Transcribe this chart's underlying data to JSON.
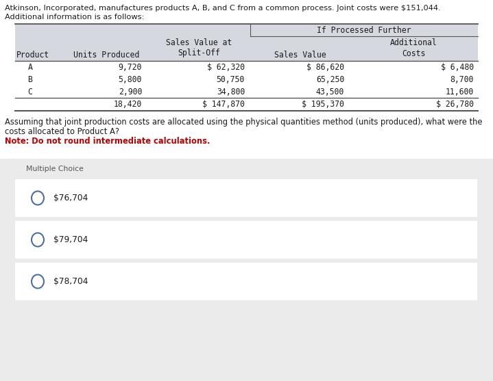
{
  "title_line1": "Atkinson, Incorporated, manufactures products A, B, and C from a common process. Joint costs were $151,044.",
  "title_line2": "Additional information is as follows:",
  "bg_color": "#ffffff",
  "table_header_bg": "#d6d8e0",
  "mc_bg": "#ebebeb",
  "mc_choice_bg": "#f5f5f5",
  "header_if_processed": "If Processed Further",
  "col_headers": [
    "Product",
    "Units Produced",
    "Sales Value at\nSplit-Off",
    "Sales Value",
    "Additional\nCosts"
  ],
  "products": [
    "A",
    "B",
    "C"
  ],
  "units": [
    "9,720",
    "5,800",
    "2,900"
  ],
  "sales_splitoff": [
    "$ 62,320",
    "50,750",
    "34,800"
  ],
  "sales_value": [
    "$ 86,620",
    "65,250",
    "43,500"
  ],
  "add_costs": [
    "$ 6,480",
    "8,700",
    "11,600"
  ],
  "total_units": "18,420",
  "total_splitoff": "$ 147,870",
  "total_sales": "$ 195,370",
  "total_costs": "$ 26,780",
  "question_line1": "Assuming that joint production costs are allocated using the physical quantities method (units produced), what were the",
  "question_line2": "costs allocated to Product A?",
  "note": "Note: Do not round intermediate calculations.",
  "mc_label": "Multiple Choice",
  "choices": [
    "$76,704",
    "$79,704",
    "$78,704"
  ],
  "note_color": "#bb0000",
  "text_color": "#1a1a1a",
  "line_color": "#555555",
  "circle_color": "#4a6fa5"
}
